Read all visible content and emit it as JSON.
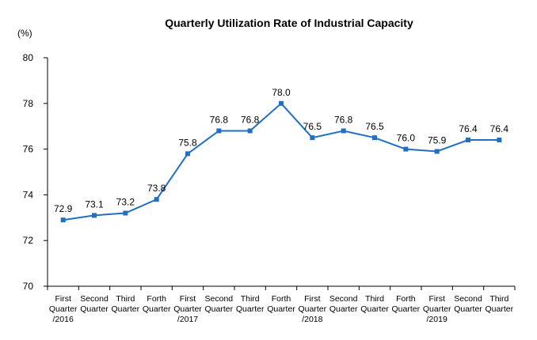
{
  "chart_data": {
    "type": "line",
    "title": "Quarterly Utilization Rate of Industrial Capacity",
    "ylabel": "(%)",
    "xlabel": "",
    "ylim": [
      70,
      80
    ],
    "yticks": [
      70,
      72,
      74,
      76,
      78,
      80
    ],
    "grid": false,
    "legend": "none",
    "color": "#1f6fc5",
    "categories": [
      [
        "First",
        "Quarter",
        "/2016"
      ],
      [
        "Second",
        "Quarter"
      ],
      [
        "Third",
        "Quarter"
      ],
      [
        "Forth",
        "Quarter"
      ],
      [
        "First",
        "Quarter",
        "/2017"
      ],
      [
        "Second",
        "Quarter"
      ],
      [
        "Third",
        "Quarter"
      ],
      [
        "Forth",
        "Quarter"
      ],
      [
        "First",
        "Quarter",
        "/2018"
      ],
      [
        "Second",
        "Quarter"
      ],
      [
        "Third",
        "Quarter"
      ],
      [
        "Forth",
        "Quarter"
      ],
      [
        "First",
        "Quarter",
        "/2019"
      ],
      [
        "Second",
        "Quarter"
      ],
      [
        "Third",
        "Quarter"
      ]
    ],
    "values": [
      72.9,
      73.1,
      73.2,
      73.8,
      75.8,
      76.8,
      76.8,
      78.0,
      76.5,
      76.8,
      76.5,
      76.0,
      75.9,
      76.4,
      76.4
    ],
    "value_labels": [
      "72.9",
      "73.1",
      "73.2",
      "73.8",
      "75.8",
      "76.8",
      "76.8",
      "78.0",
      "76.5",
      "76.8",
      "76.5",
      "76.0",
      "75.9",
      "76.4",
      "76.4"
    ]
  }
}
